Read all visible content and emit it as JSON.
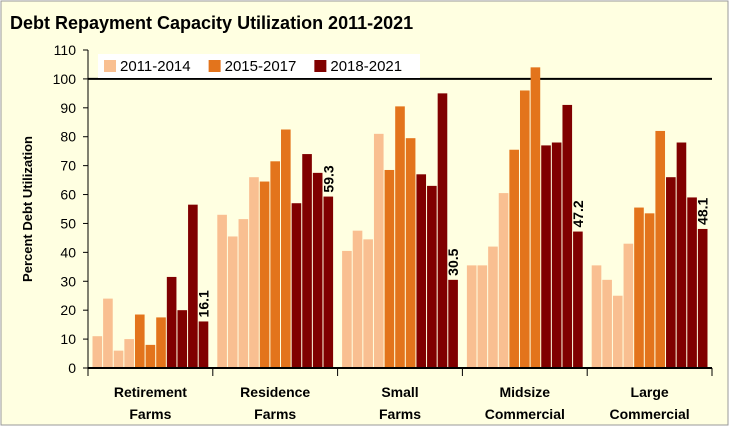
{
  "chart_data": {
    "type": "grouped_bar",
    "title": "Debt Repayment Capacity Utilization 2011-2021",
    "y_label": "Percent Debt Utilization",
    "categories": [
      [
        "Retirement",
        "Farms"
      ],
      [
        "Residence",
        "Farms"
      ],
      [
        "Small",
        "Farms"
      ],
      [
        "Midsize",
        "Commercial"
      ],
      [
        "Large",
        "Commercial"
      ]
    ],
    "series": [
      {
        "name": "2011-2014",
        "color": "#f9bf91",
        "values": [
          [
            11,
            24,
            6,
            10
          ],
          [
            53,
            45.5,
            51.5,
            66
          ],
          [
            40.5,
            47.5,
            44.5,
            81
          ],
          [
            35.5,
            35.5,
            42,
            60.5
          ],
          [
            35.5,
            30.5,
            25,
            43
          ]
        ]
      },
      {
        "name": "2015-2017",
        "color": "#e3741c",
        "values": [
          [
            18.5,
            8,
            17.5
          ],
          [
            64.5,
            71.5,
            82.5
          ],
          [
            68.5,
            90.5,
            79.5
          ],
          [
            75.5,
            96,
            104
          ],
          [
            55.5,
            53.5,
            82
          ]
        ]
      },
      {
        "name": "2018-2021",
        "color": "#800000",
        "values": [
          [
            31.5,
            20,
            56.5,
            16.1
          ],
          [
            57,
            74,
            67.5,
            59.3
          ],
          [
            67,
            63,
            95,
            30.5
          ],
          [
            77,
            78,
            91,
            47.2
          ],
          [
            66,
            78,
            59,
            48.1
          ]
        ]
      }
    ],
    "data_labels": "last",
    "ylim": [
      0,
      110
    ],
    "yticks": [
      0,
      10,
      20,
      30,
      40,
      50,
      60,
      70,
      80,
      90,
      100,
      110
    ],
    "hline": 100
  }
}
